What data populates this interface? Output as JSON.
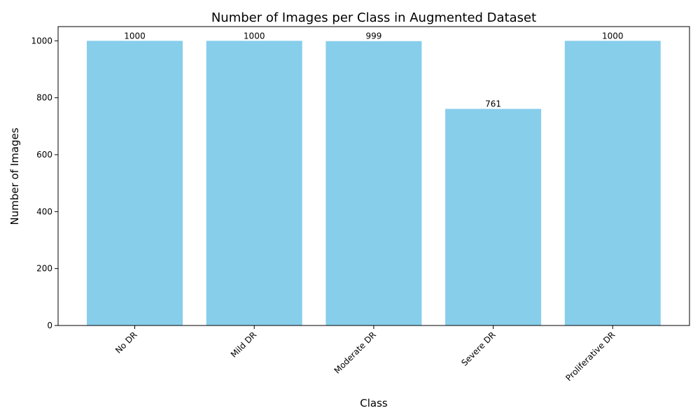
{
  "chart_data": {
    "type": "bar",
    "title": "Number of Images per Class in Augmented Dataset",
    "xlabel": "Class",
    "ylabel": "Number of Images",
    "categories": [
      "No DR",
      "Mild DR",
      "Moderate DR",
      "Severe DR",
      "Proliferative DR"
    ],
    "values": [
      1000,
      1000,
      999,
      761,
      1000
    ],
    "ylim": [
      0,
      1050
    ],
    "yticks": [
      0,
      200,
      400,
      600,
      800,
      1000
    ],
    "bar_color": "#87CEEB",
    "x_tick_rotation_deg": 45,
    "grid": false,
    "legend": "none"
  }
}
